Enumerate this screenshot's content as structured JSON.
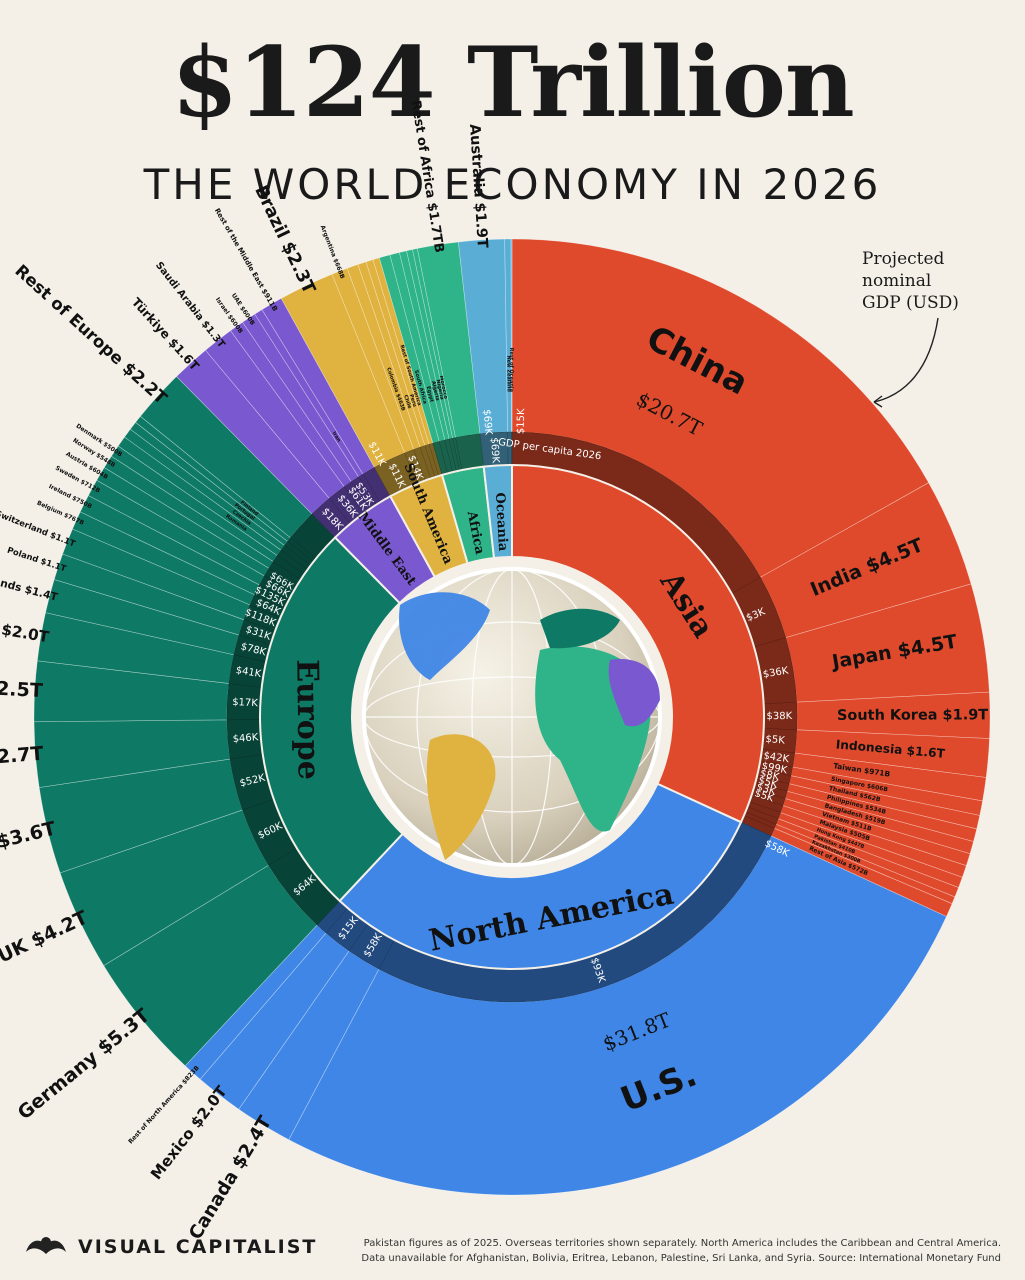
{
  "header": {
    "title": "$124 Trillion",
    "subtitle": "THE WORLD ECONOMY IN 2026",
    "annotation_line1": "Projected",
    "annotation_line2": "nominal",
    "annotation_line3": "GDP (USD)",
    "per_capita_label": "GDP per capita 2026"
  },
  "footer": {
    "brand": "VISUAL CAPITALIST",
    "note_line1": "Pakistan figures as of 2025. Overseas territories shown separately. North America includes the Caribbean and Central America.",
    "note_line2": "Data unavailable for Afghanistan, Bolivia, Eritrea, Lebanon, Palestine, Sri Lanka, and Syria. Source: International Monetary Fund"
  },
  "colors": {
    "Asia": "#e04a2c",
    "North America": "#3f86e6",
    "Europe": "#0e7a66",
    "Middle East": "#7a58cf",
    "South America": "#e0b23f",
    "Africa": "#2fb389",
    "Oceania": "#5aaed6"
  },
  "chart_data": {
    "type": "pie",
    "title": "$124 Trillion",
    "subtitle": "THE WORLD ECONOMY IN 2026",
    "unit": "Projected nominal GDP (USD)",
    "regions": [
      {
        "name": "Asia",
        "label": "Asia",
        "gdp_per_capita": "$15K",
        "countries": [
          {
            "name": "China",
            "gdp": 20.7,
            "label": "$20.7T",
            "per_capita": ""
          },
          {
            "name": "India",
            "gdp": 4.5,
            "label": "$4.5T",
            "per_capita": "$3K"
          },
          {
            "name": "Japan",
            "gdp": 4.5,
            "label": "$4.5T",
            "per_capita": "$36K"
          },
          {
            "name": "South Korea",
            "gdp": 1.9,
            "label": "$1.9T",
            "per_capita": "$38K"
          },
          {
            "name": "Indonesia",
            "gdp": 1.6,
            "label": "$1.6T",
            "per_capita": "$5K"
          },
          {
            "name": "Taiwan",
            "gdp": 0.971,
            "label": "$971B",
            "per_capita": "$42K"
          },
          {
            "name": "Singapore",
            "gdp": 0.606,
            "label": "$606B",
            "per_capita": "$99K"
          },
          {
            "name": "Thailand",
            "gdp": 0.562,
            "label": "$562B",
            "per_capita": "$8K"
          },
          {
            "name": "Philippines",
            "gdp": 0.534,
            "label": "$534B",
            "per_capita": "$5K"
          },
          {
            "name": "Bangladesh",
            "gdp": 0.519,
            "label": "$519B",
            "per_capita": "$3K"
          },
          {
            "name": "Vietnam",
            "gdp": 0.511,
            "label": "$511B",
            "per_capita": "$5K"
          },
          {
            "name": "Malaysia",
            "gdp": 0.505,
            "label": "$505B",
            "per_capita": ""
          },
          {
            "name": "Hong Kong",
            "gdp": 0.447,
            "label": "$447B",
            "per_capita": ""
          },
          {
            "name": "Pakistan",
            "gdp": 0.41,
            "label": "$410B",
            "per_capita": ""
          },
          {
            "name": "Kazakhstan",
            "gdp": 0.3,
            "label": "$300B",
            "per_capita": ""
          },
          {
            "name": "Rest of Asia",
            "gdp": 0.572,
            "label": "$572B",
            "per_capita": ""
          }
        ]
      },
      {
        "name": "North America",
        "label": "North America",
        "gdp_per_capita": "$58K",
        "countries": [
          {
            "name": "U.S.",
            "gdp": 31.8,
            "label": "$31.8T",
            "per_capita": "$93K"
          },
          {
            "name": "Canada",
            "gdp": 2.4,
            "label": "$2.4T",
            "per_capita": "$58K"
          },
          {
            "name": "Mexico",
            "gdp": 2.0,
            "label": "$2.0T",
            "per_capita": "$15K"
          },
          {
            "name": "Rest of North America",
            "gdp": 0.823,
            "label": "$823B",
            "per_capita": ""
          }
        ]
      },
      {
        "name": "Europe",
        "label": "Europe",
        "gdp_per_capita": "",
        "countries": [
          {
            "name": "Germany",
            "gdp": 5.3,
            "label": "$5.3T",
            "per_capita": "$64K"
          },
          {
            "name": "UK",
            "gdp": 4.2,
            "label": "$4.2T",
            "per_capita": "$60K"
          },
          {
            "name": "France",
            "gdp": 3.6,
            "label": "$3.6T",
            "per_capita": "$52K"
          },
          {
            "name": "Italy",
            "gdp": 2.7,
            "label": "$2.7T",
            "per_capita": "$46K"
          },
          {
            "name": "Russia",
            "gdp": 2.5,
            "label": "$2.5T",
            "per_capita": "$17K"
          },
          {
            "name": "Spain",
            "gdp": 2.0,
            "label": "$2.0T",
            "per_capita": "$41K"
          },
          {
            "name": "Netherlands",
            "gdp": 1.4,
            "label": "$1.4T",
            "per_capita": "$78K"
          },
          {
            "name": "Poland",
            "gdp": 1.1,
            "label": "$1.1T",
            "per_capita": "$31K"
          },
          {
            "name": "Switzerland",
            "gdp": 1.1,
            "label": "$1.1T",
            "per_capita": "$118K"
          },
          {
            "name": "Belgium",
            "gdp": 0.767,
            "label": "$767B",
            "per_capita": "$64K"
          },
          {
            "name": "Ireland",
            "gdp": 0.75,
            "label": "$750B",
            "per_capita": "$135K"
          },
          {
            "name": "Sweden",
            "gdp": 0.712,
            "label": "$712B",
            "per_capita": "$66K"
          },
          {
            "name": "Austria",
            "gdp": 0.604,
            "label": "$604B",
            "per_capita": "$66K"
          },
          {
            "name": "Norway",
            "gdp": 0.548,
            "label": "$548B",
            "per_capita": ""
          },
          {
            "name": "Denmark",
            "gdp": 0.5,
            "label": "$500B",
            "per_capita": ""
          },
          {
            "name": "Romania",
            "gdp": 0.45,
            "label": "",
            "per_capita": ""
          },
          {
            "name": "Czechia",
            "gdp": 0.4,
            "label": "",
            "per_capita": ""
          },
          {
            "name": "Portugal",
            "gdp": 0.35,
            "label": "",
            "per_capita": ""
          },
          {
            "name": "Finland",
            "gdp": 0.32,
            "label": "",
            "per_capita": ""
          },
          {
            "name": "Rest of Europe",
            "gdp": 2.2,
            "label": "$2.2T",
            "per_capita": ""
          }
        ]
      },
      {
        "name": "Middle East",
        "label": "Middle East",
        "gdp_per_capita": "",
        "countries": [
          {
            "name": "Türkiye",
            "gdp": 1.6,
            "label": "$1.6T",
            "per_capita": "$18K"
          },
          {
            "name": "Saudi Arabia",
            "gdp": 1.3,
            "label": "$1.3T",
            "per_capita": "$36K"
          },
          {
            "name": "Israel",
            "gdp": 0.6,
            "label": "$600B",
            "per_capita": "$61K"
          },
          {
            "name": "UAE",
            "gdp": 0.6,
            "label": "$600B",
            "per_capita": "$53K"
          },
          {
            "name": "Iran",
            "gdp": 0.35,
            "label": "",
            "per_capita": ""
          },
          {
            "name": "Rest of the Middle East",
            "gdp": 0.911,
            "label": "$911B",
            "per_capita": ""
          }
        ]
      },
      {
        "name": "South America",
        "label": "South America",
        "gdp_per_capita": "$11K",
        "countries": [
          {
            "name": "Brazil",
            "gdp": 2.3,
            "label": "$2.3T",
            "per_capita": "$11K"
          },
          {
            "name": "Argentina",
            "gdp": 0.668,
            "label": "$668B",
            "per_capita": "$14K"
          },
          {
            "name": "Colombia",
            "gdp": 0.463,
            "label": "$463B",
            "per_capita": ""
          },
          {
            "name": "Chile",
            "gdp": 0.35,
            "label": "",
            "per_capita": ""
          },
          {
            "name": "Peru",
            "gdp": 0.3,
            "label": "",
            "per_capita": ""
          },
          {
            "name": "Rest of South America",
            "gdp": 0.27,
            "label": "",
            "per_capita": ""
          }
        ]
      },
      {
        "name": "Africa",
        "label": "Africa",
        "gdp_per_capita": "",
        "countries": [
          {
            "name": "South Africa",
            "gdp": 0.45,
            "label": "",
            "per_capita": ""
          },
          {
            "name": "Egypt",
            "gdp": 0.4,
            "label": "",
            "per_capita": ""
          },
          {
            "name": "Algeria",
            "gdp": 0.3,
            "label": "",
            "per_capita": ""
          },
          {
            "name": "Nigeria",
            "gdp": 0.25,
            "label": "",
            "per_capita": ""
          },
          {
            "name": "Morocco",
            "gdp": 0.2,
            "label": "",
            "per_capita": ""
          },
          {
            "name": "Rest of Africa",
            "gdp": 1.7,
            "label": "$1.7TB",
            "per_capita": ""
          }
        ]
      },
      {
        "name": "Oceania",
        "label": "Oceania",
        "gdp_per_capita": "$69K",
        "countries": [
          {
            "name": "Australia",
            "gdp": 1.9,
            "label": "$1.9T",
            "per_capita": "$69K"
          },
          {
            "name": "New Zealand",
            "gdp": 0.26,
            "label": "",
            "per_capita": ""
          },
          {
            "name": "Rest of Oceania",
            "gdp": 0.04,
            "label": "",
            "per_capita": ""
          }
        ]
      }
    ]
  }
}
